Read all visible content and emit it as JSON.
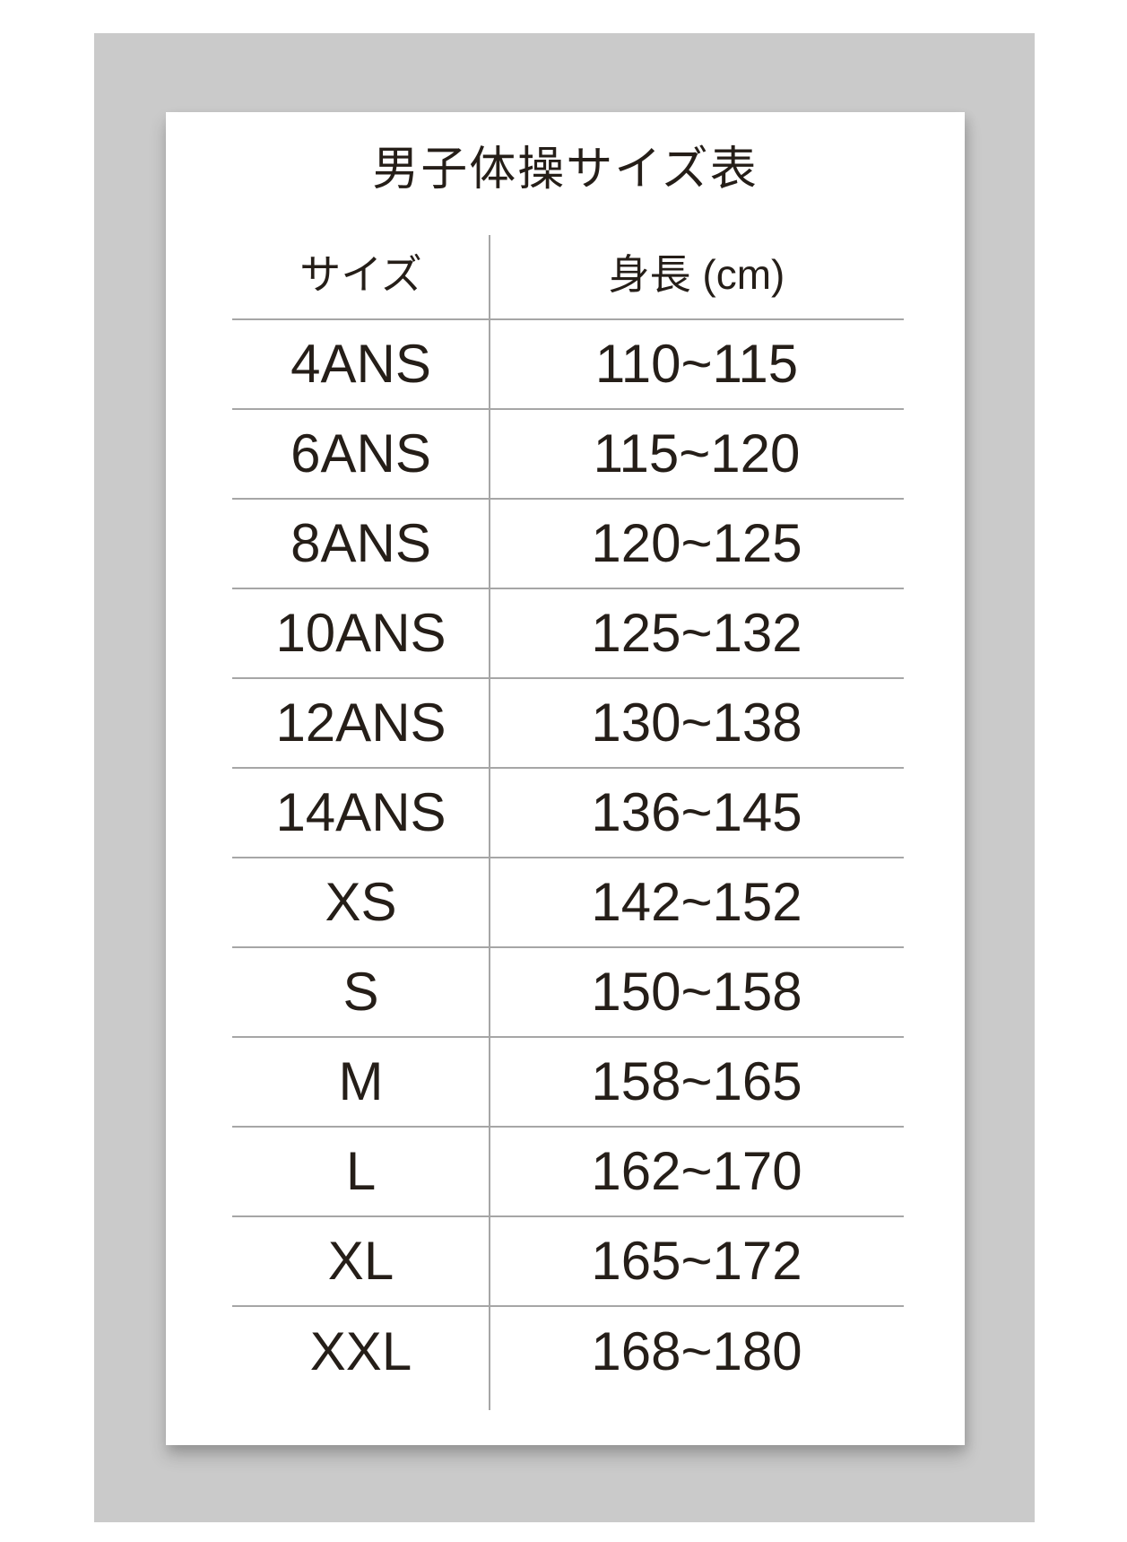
{
  "page": {
    "colors": {
      "background": "#ffffff",
      "panel": "#cacaca",
      "card": "#ffffff",
      "text": "#251e18",
      "table_line": "#a6a6a6"
    }
  },
  "card": {
    "title": "男子体操サイズ表"
  },
  "table": {
    "columns": {
      "size": "サイズ",
      "height": "身長 (cm)"
    },
    "rows": [
      {
        "size": "4ANS",
        "height": "110~115"
      },
      {
        "size": "6ANS",
        "height": "115~120"
      },
      {
        "size": "8ANS",
        "height": "120~125"
      },
      {
        "size": "10ANS",
        "height": "125~132"
      },
      {
        "size": "12ANS",
        "height": "130~138"
      },
      {
        "size": "14ANS",
        "height": "136~145"
      },
      {
        "size": "XS",
        "height": "142~152"
      },
      {
        "size": "S",
        "height": "150~158"
      },
      {
        "size": "M",
        "height": "158~165"
      },
      {
        "size": "L",
        "height": "162~170"
      },
      {
        "size": "XL",
        "height": "165~172"
      },
      {
        "size": "XXL",
        "height": "168~180"
      }
    ]
  }
}
